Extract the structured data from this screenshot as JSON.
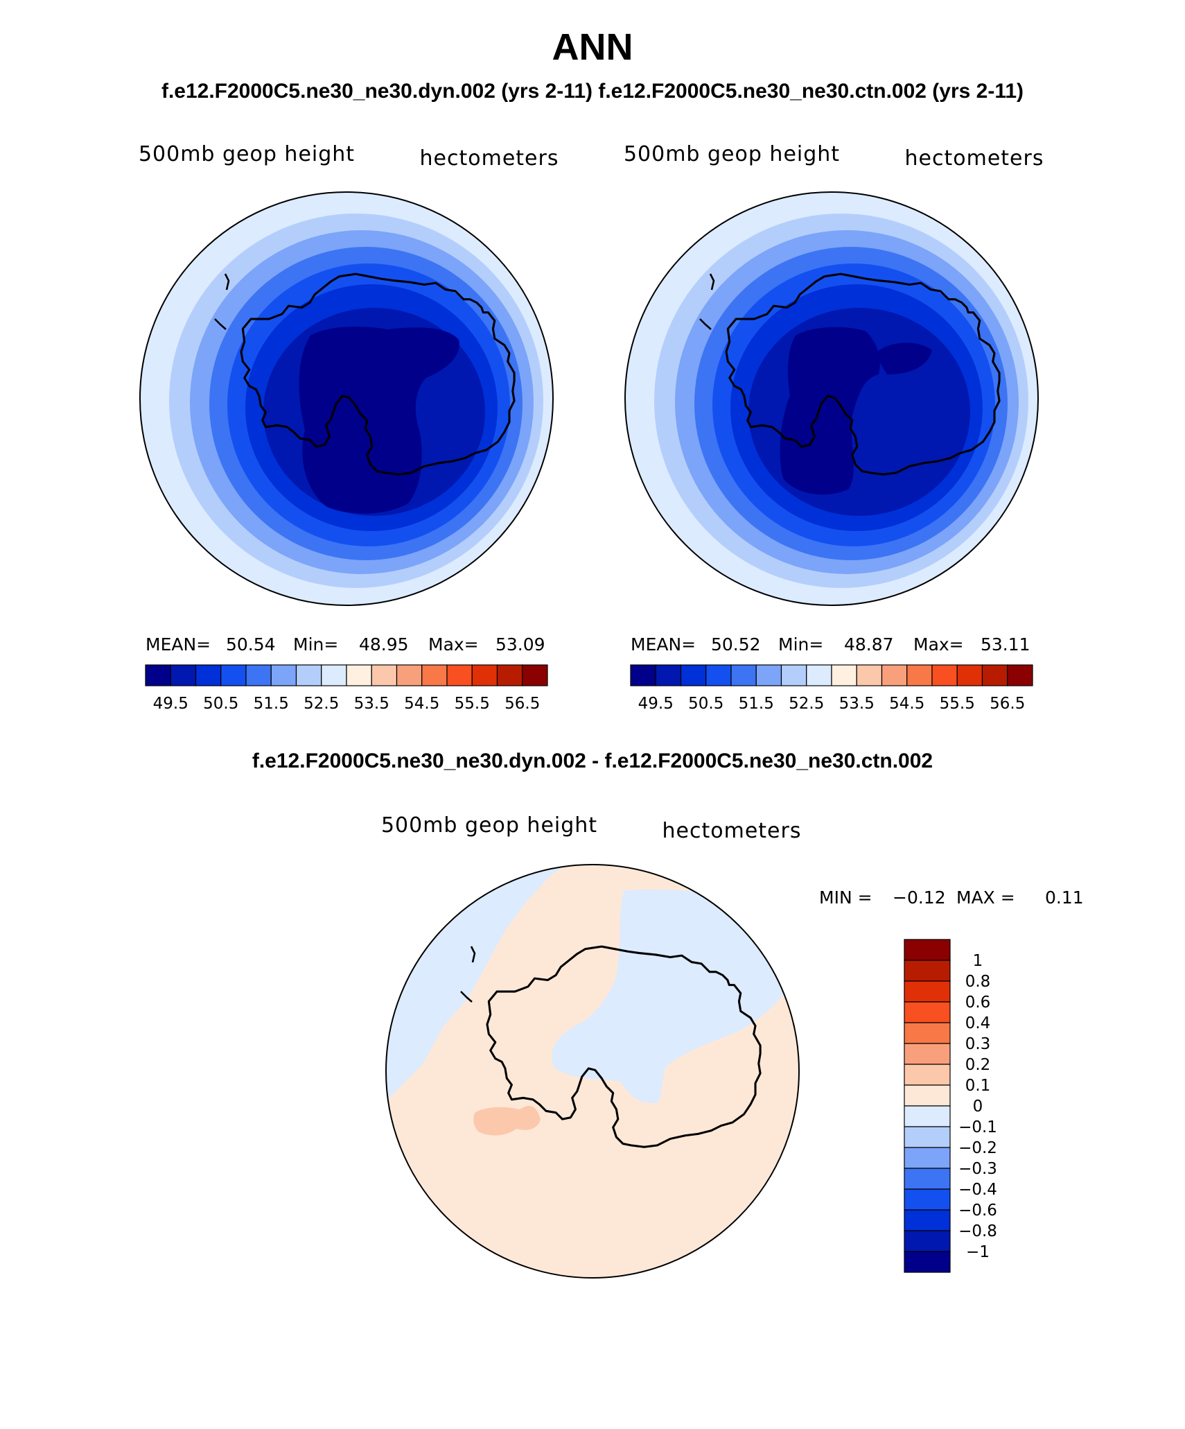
{
  "title": "ANN",
  "subtitle_top": "f.e12.F2000C5.ne30_ne30.dyn.002 (yrs 2-11)  f.e12.F2000C5.ne30_ne30.ctn.002 (yrs 2-11)",
  "subtitle_diff": "f.e12.F2000C5.ne30_ne30.dyn.002 - f.e12.F2000C5.ne30_ne30.ctn.002",
  "panels": [
    {
      "variable": "500mb geop height",
      "units": "hectometers",
      "stats": {
        "mean_label": "MEAN=",
        "mean": "50.54",
        "min_label": "Min=",
        "min": "48.95",
        "max_label": "Max=",
        "max": "53.09"
      }
    },
    {
      "variable": "500mb geop height",
      "units": "hectometers",
      "stats": {
        "mean_label": "MEAN=",
        "mean": "50.52",
        "min_label": "Min=",
        "min": "48.87",
        "max_label": "Max=",
        "max": "53.11"
      }
    }
  ],
  "diff_panel": {
    "variable": "500mb geop height",
    "units": "hectometers",
    "stats": {
      "min_label": "MIN =",
      "min": "−0.12",
      "max_label": "MAX =",
      "max": "0.11"
    }
  },
  "abs_colorbar": {
    "colors": [
      "#00008b",
      "#0018b0",
      "#0030d8",
      "#1450f0",
      "#3c74f4",
      "#7ca4f8",
      "#b4cefc",
      "#dcebfe",
      "#fff0e0",
      "#fcc8ac",
      "#f8a07c",
      "#f87848",
      "#f85020",
      "#e03008",
      "#b81c00",
      "#8b0000"
    ],
    "tick_labels": [
      "49.5",
      "50.5",
      "51.5",
      "52.5",
      "53.5",
      "54.5",
      "55.5",
      "56.5"
    ]
  },
  "diff_colorbar": {
    "colors_top_to_bottom": [
      "#8b0000",
      "#b81c00",
      "#e03008",
      "#f85020",
      "#f87848",
      "#f8a07c",
      "#fcc8ac",
      "#fde8d8",
      "#dcebfe",
      "#b4cefc",
      "#7ca4f8",
      "#3c74f4",
      "#1450f0",
      "#0030d8",
      "#0018b0",
      "#00008b"
    ],
    "tick_labels": [
      "1",
      "0.8",
      "0.6",
      "0.4",
      "0.3",
      "0.2",
      "0.1",
      "0",
      "−0.1",
      "−0.2",
      "−0.3",
      "−0.4",
      "−0.6",
      "−0.8",
      "−1"
    ]
  },
  "map_colors": {
    "ring_outer": [
      "#dcebfe",
      "#b4cefc",
      "#7ca4f8",
      "#3c74f4",
      "#1450f0",
      "#0030d8",
      "#0018b0"
    ],
    "core": "#00008b",
    "diff_positive": "#fde8d8",
    "diff_negative": "#dcebfe",
    "diff_strong_negative": "#b4cefc",
    "diff_strong_positive": "#fcc8ac"
  }
}
